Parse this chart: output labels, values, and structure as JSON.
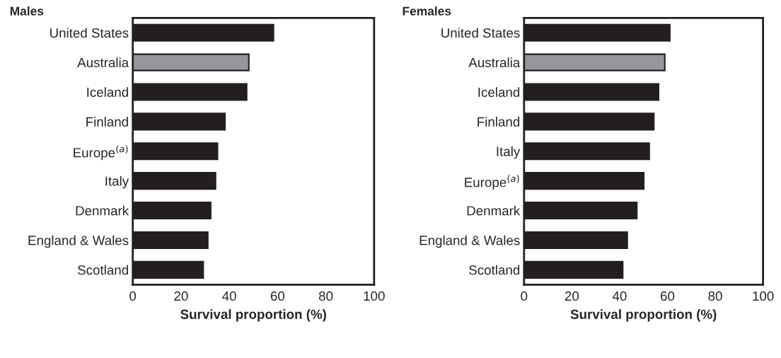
{
  "chart_data": [
    {
      "type": "bar",
      "title": "Males",
      "orientation": "horizontal",
      "xlabel": "Survival proportion (%)",
      "categories": [
        "United States",
        "Australia",
        "Iceland",
        "Finland",
        "Europe$^{(a)}$",
        "Italy",
        "Denmark",
        "England & Wales",
        "Scotland"
      ],
      "values": [
        58.3,
        48.1,
        47.2,
        38.2,
        35.1,
        34.3,
        32.3,
        31.1,
        29.2
      ],
      "colors": [
        "#231f20",
        "#96979a",
        "#231f20",
        "#231f20",
        "#231f20",
        "#231f20",
        "#231f20",
        "#231f20",
        "#231f20"
      ],
      "xlim": [
        0,
        100
      ],
      "xticks": [
        0,
        20,
        40,
        60,
        80,
        100
      ],
      "grid": false,
      "legend": false
    },
    {
      "type": "bar",
      "title": "Females",
      "orientation": "horizontal",
      "xlabel": "Survival proportion (%)",
      "categories": [
        "United States",
        "Australia",
        "Iceland",
        "Finland",
        "Italy",
        "Europe$^{(a)}$",
        "Denmark",
        "England & Wales",
        "Scotland"
      ],
      "values": [
        61,
        58.9,
        56.3,
        54.3,
        52.4,
        50.1,
        47.2,
        43.2,
        41.3
      ],
      "colors": [
        "#231f20",
        "#96979a",
        "#231f20",
        "#231f20",
        "#231f20",
        "#231f20",
        "#231f20",
        "#231f20",
        "#231f20"
      ],
      "xlim": [
        0,
        100
      ],
      "xticks": [
        0,
        20,
        40,
        60,
        80,
        100
      ],
      "grid": false,
      "legend": false
    }
  ]
}
